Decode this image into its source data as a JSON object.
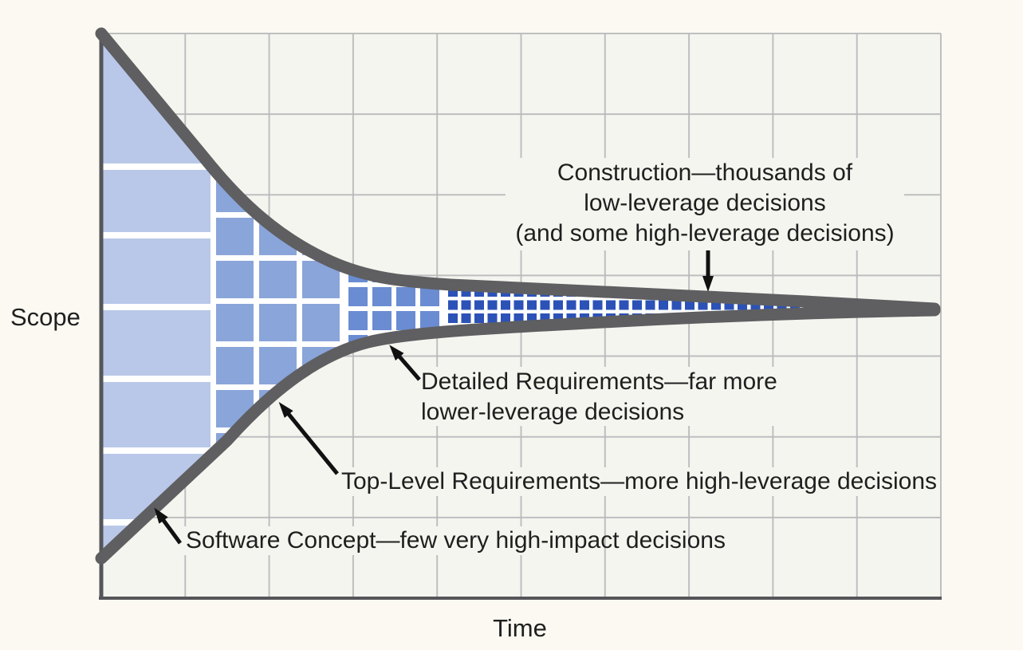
{
  "figure": {
    "axes": {
      "y_label": "Scope",
      "x_label": "Time"
    },
    "annotations": {
      "construction": {
        "lines": [
          "Construction—thousands of",
          "low-leverage decisions",
          "(and some high-leverage decisions)"
        ]
      },
      "detailed_requirements": {
        "lines": [
          "Detailed Requirements—far more",
          "lower-leverage decisions"
        ]
      },
      "top_level_requirements": {
        "lines": [
          "Top-Level Requirements—more high-leverage decisions"
        ]
      },
      "software_concept": {
        "lines": [
          "Software Concept—few very high-impact decisions"
        ]
      }
    },
    "phases": [
      {
        "name": "Software Concept",
        "cell_color": "#b9c8e9"
      },
      {
        "name": "Top-Level Requirements",
        "cell_color": "#8aa5da"
      },
      {
        "name": "Detailed Requirements",
        "cell_color": "#6a8cd2"
      },
      {
        "name": "Construction",
        "cell_color": "#2c52b7"
      }
    ],
    "colors": {
      "page_bg": "#fbf9f2",
      "plot_bg": "#f5f5f0",
      "grid": "#b9b9bb",
      "axis": "#55565a",
      "funnel_band": "#5f5f61",
      "cell_gap": "#ffffff",
      "cell_a": "#b9c8e9",
      "cell_b": "#8aa5da",
      "cell_c": "#6a8cd2",
      "cell_d": "#2c52b7",
      "arrow": "#111111",
      "text": "#1f1f1f"
    }
  }
}
